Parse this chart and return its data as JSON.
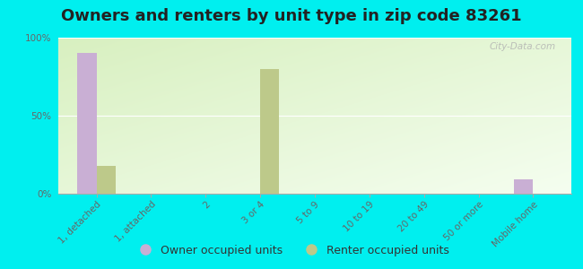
{
  "title": "Owners and renters by unit type in zip code 83261",
  "categories": [
    "1, detached",
    "1, attached",
    "2",
    "3 or 4",
    "5 to 9",
    "10 to 19",
    "20 to 49",
    "50 or more",
    "Mobile home"
  ],
  "owner_values": [
    90,
    0,
    0,
    0,
    0,
    0,
    0,
    0,
    9
  ],
  "renter_values": [
    18,
    0,
    0,
    80,
    0,
    0,
    0,
    0,
    0
  ],
  "owner_color": "#c9afd4",
  "renter_color": "#bdc98a",
  "grad_top_left": "#d8f0c0",
  "grad_bottom_right": "#f5fef0",
  "outer_bg": "#00efef",
  "ylim": [
    0,
    100
  ],
  "yticks": [
    0,
    50,
    100
  ],
  "ytick_labels": [
    "0%",
    "50%",
    "100%"
  ],
  "bar_width": 0.35,
  "title_fontsize": 13,
  "tick_fontsize": 7.5,
  "legend_fontsize": 9,
  "watermark": "City-Data.com"
}
